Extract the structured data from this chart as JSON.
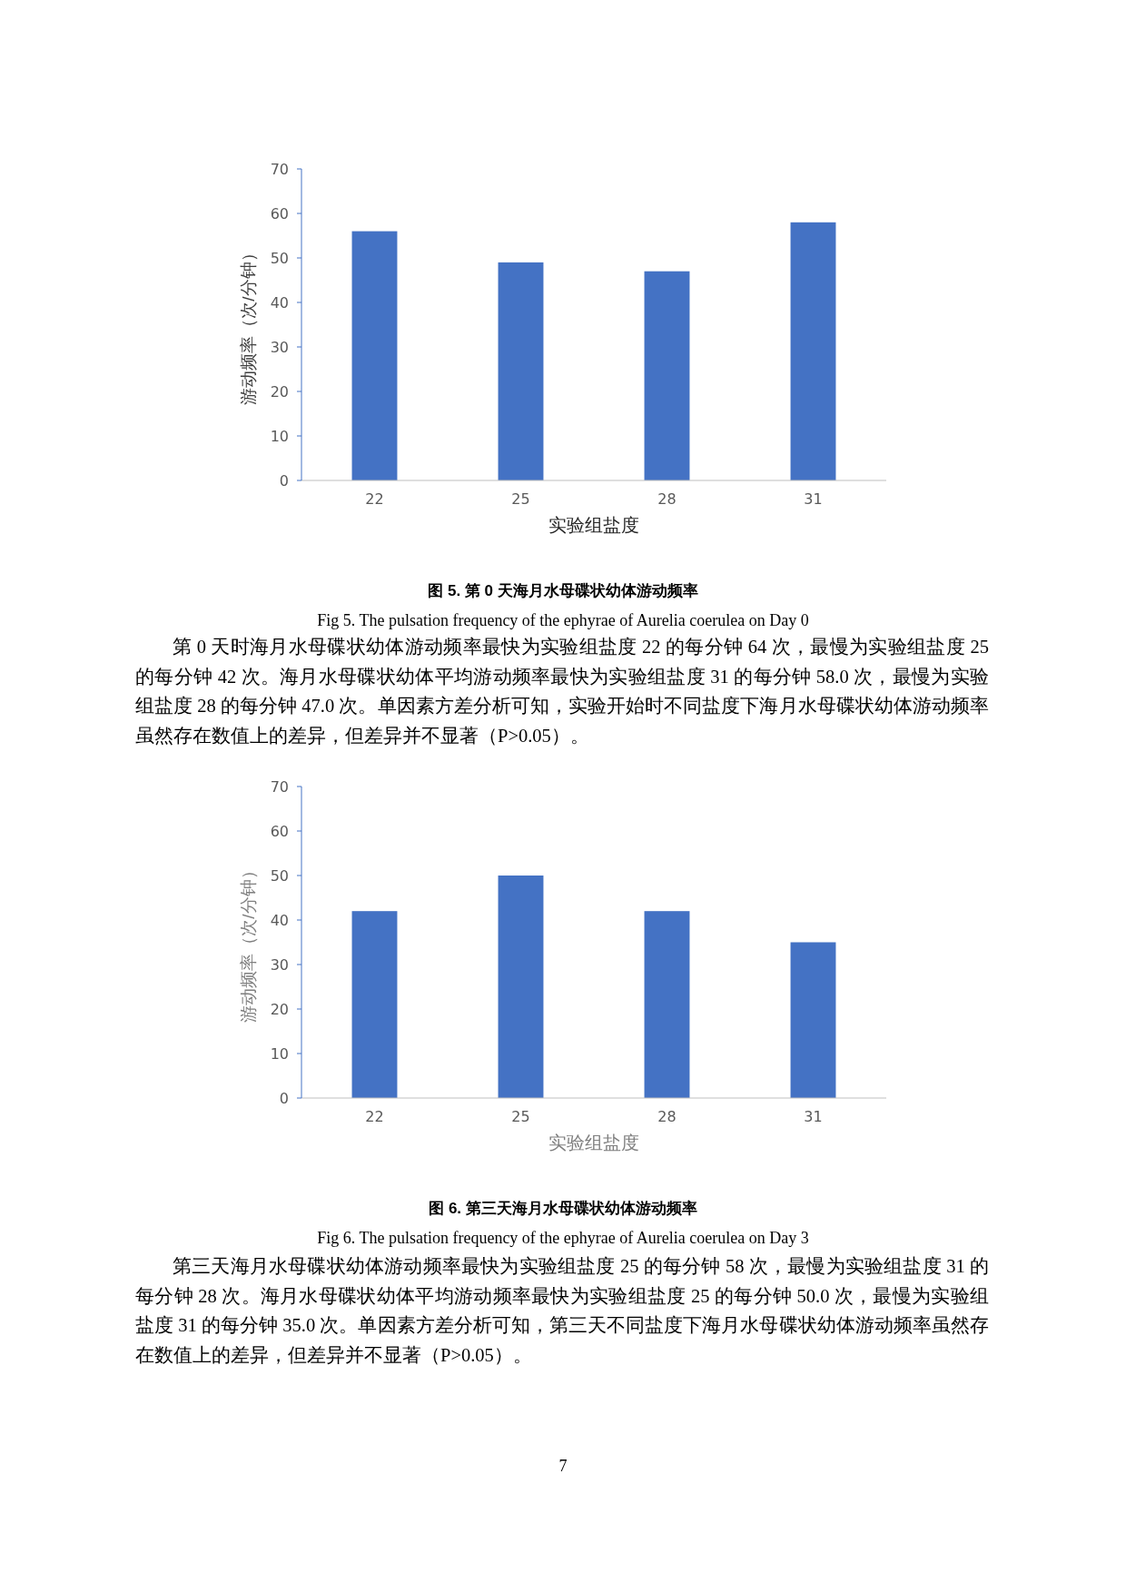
{
  "chart_data": [
    {
      "type": "bar",
      "title": "图 5.  第 0 天海月水母碟状幼体游动频率",
      "subtitle": "Fig 5. The pulsation frequency of the ephyrae of Aurelia coerulea on Day 0",
      "xlabel": "实验组盐度",
      "ylabel": "游动频率（次/分钟）",
      "categories": [
        "22",
        "25",
        "28",
        "31"
      ],
      "values": [
        56,
        49,
        47,
        58
      ],
      "color": "#4472c4",
      "ylim": [
        0,
        70
      ],
      "yticks": [
        0,
        10,
        20,
        30,
        40,
        50,
        60,
        70
      ],
      "grid": false,
      "annotations": [
        "第 0 天时海月水母碟状幼体游动频率最快为实验组盐度 22 的每分钟 64 次，最慢为实验组盐度 25 的每分钟 42 次。海月水母碟状幼体平均游动频率最快为实验组盐度 31 的每分钟 58.0 次，最慢为实验组盐度 28 的每分钟 47.0 次。单因素方差分析可知，实验开始时不同盐度下海月水母碟状幼体游动频率虽然存在数值上的差异，但差异并不显著（P>0.05）。"
      ]
    },
    {
      "type": "bar",
      "title": "图 6. 第三天海月水母碟状幼体游动频率",
      "subtitle": "Fig 6. The pulsation frequency of the ephyrae of Aurelia coerulea on Day 3",
      "xlabel": "实验组盐度",
      "ylabel": "游动频率（次/分钟）",
      "categories": [
        "22",
        "25",
        "28",
        "31"
      ],
      "values": [
        42,
        50,
        42,
        35
      ],
      "color": "#4472c4",
      "ylim": [
        0,
        70
      ],
      "yticks": [
        0,
        10,
        20,
        30,
        40,
        50,
        60,
        70
      ],
      "grid": false,
      "annotations": [
        "第三天海月水母碟状幼体游动频率最快为实验组盐度 25 的每分钟 58 次，最慢为实验组盐度 31 的每分钟 28 次。海月水母碟状幼体平均游动频率最快为实验组盐度 25 的每分钟 50.0 次，最慢为实验组盐度 31 的每分钟 35.0 次。单因素方差分析可知，第三天不同盐度下海月水母碟状幼体游动频率虽然存在数值上的差异，但差异并不显著（P>0.05）。",
        "7"
      ]
    }
  ]
}
